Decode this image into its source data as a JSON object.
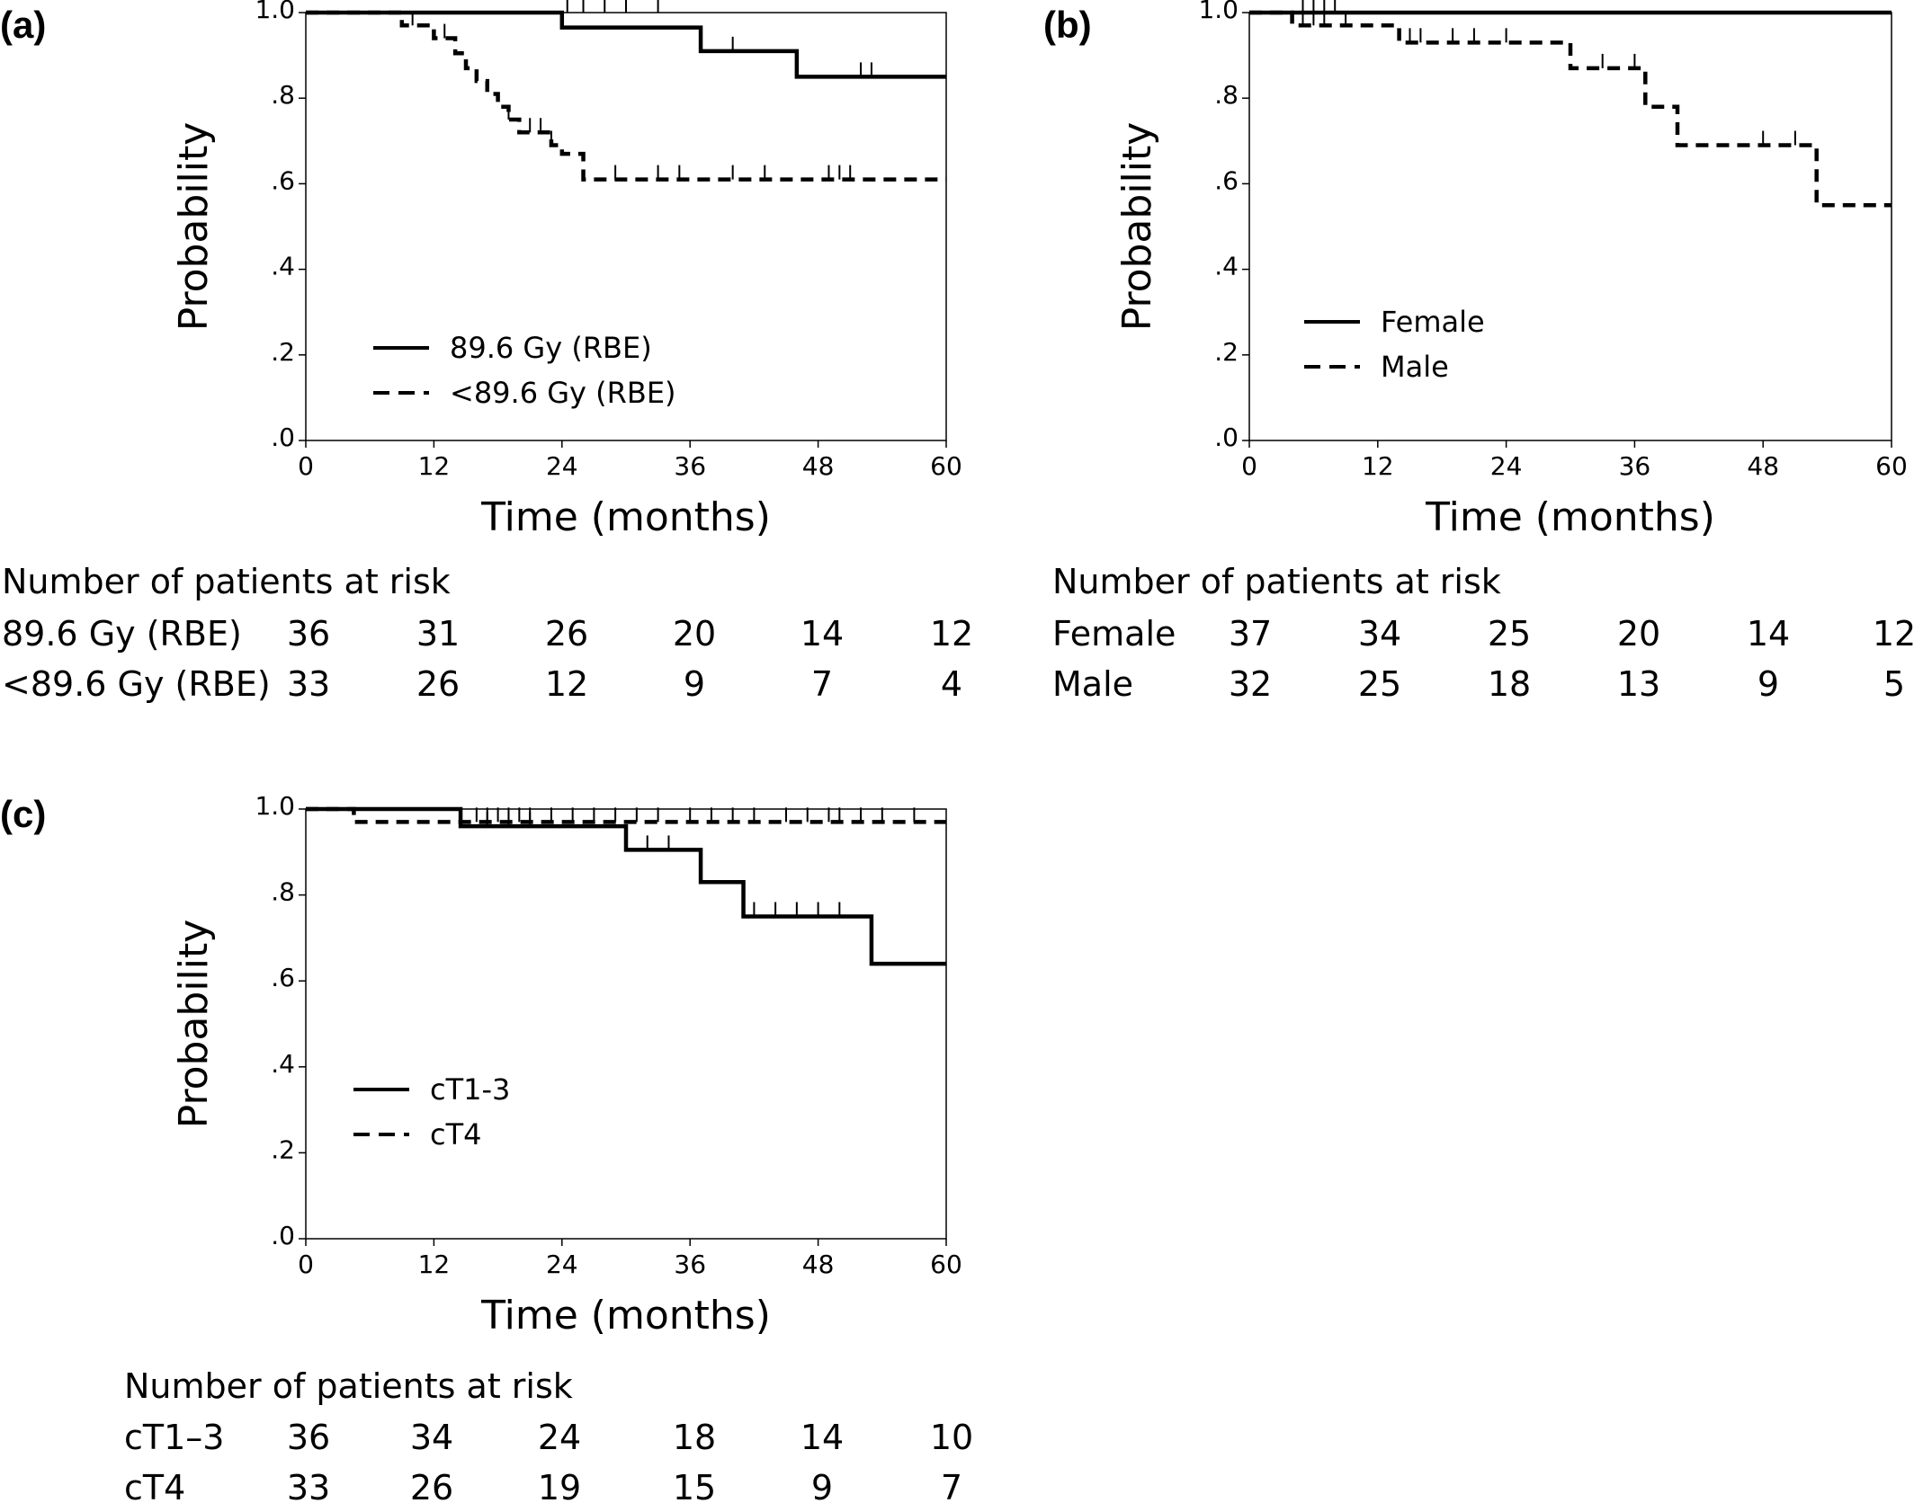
{
  "chart_data": [
    {
      "type": "line",
      "panel_label": "(a)",
      "xlabel": "Time (months)",
      "ylabel": "Probability",
      "xlim": [
        0,
        60
      ],
      "ylim": [
        0,
        1
      ],
      "x_ticks": [
        "0",
        "12",
        "24",
        "36",
        "48",
        "60"
      ],
      "y_ticks": [
        ".0",
        ".2",
        ".4",
        ".6",
        ".8",
        "1.0"
      ],
      "legend_position": "lower-left",
      "series": [
        {
          "name": "89.6 Gy (RBE)",
          "style": "solid",
          "steps": [
            [
              0,
              1.0
            ],
            [
              24,
              0.965
            ],
            [
              37,
              0.91
            ],
            [
              46,
              0.85
            ]
          ],
          "end": 60,
          "censors": [
            [
              24.5,
              1.0
            ],
            [
              26,
              1.0
            ],
            [
              28,
              1.0
            ],
            [
              30,
              1.0
            ],
            [
              33,
              1.0
            ],
            [
              40,
              0.91
            ],
            [
              52,
              0.85
            ],
            [
              53,
              0.85
            ]
          ]
        },
        {
          "name": "<89.6 Gy (RBE)",
          "style": "dashed",
          "steps": [
            [
              0,
              1.0
            ],
            [
              9,
              0.97
            ],
            [
              12,
              0.94
            ],
            [
              14,
              0.905
            ],
            [
              15,
              0.87
            ],
            [
              16,
              0.84
            ],
            [
              17,
              0.81
            ],
            [
              18,
              0.78
            ],
            [
              19,
              0.75
            ],
            [
              20,
              0.72
            ],
            [
              23,
              0.69
            ],
            [
              24,
              0.67
            ],
            [
              26,
              0.61
            ]
          ],
          "end": 60,
          "censors": [
            [
              10,
              0.97
            ],
            [
              13,
              0.94
            ],
            [
              19,
              0.75
            ],
            [
              21,
              0.72
            ],
            [
              22,
              0.72
            ],
            [
              23,
              0.69
            ],
            [
              29,
              0.61
            ],
            [
              33,
              0.61
            ],
            [
              35,
              0.61
            ],
            [
              40,
              0.61
            ],
            [
              43,
              0.61
            ],
            [
              49,
              0.61
            ],
            [
              50,
              0.61
            ],
            [
              51,
              0.61
            ]
          ]
        }
      ],
      "risk_table": {
        "title": "Number of patients at risk",
        "rows": [
          {
            "label": "89.6 Gy (RBE)",
            "values": [
              "36",
              "31",
              "26",
              "20",
              "14",
              "12"
            ]
          },
          {
            "label": "<89.6 Gy (RBE)",
            "values": [
              "33",
              "26",
              "12",
              "9",
              "7",
              "4"
            ]
          }
        ]
      }
    },
    {
      "type": "line",
      "panel_label": "(b)",
      "xlabel": "Time (months)",
      "ylabel": "Probability",
      "xlim": [
        0,
        60
      ],
      "ylim": [
        0,
        1
      ],
      "x_ticks": [
        "0",
        "12",
        "24",
        "36",
        "48",
        "60"
      ],
      "y_ticks": [
        ".0",
        ".2",
        ".4",
        ".6",
        ".8",
        "1.0"
      ],
      "legend_position": "lower-left",
      "series": [
        {
          "name": "Female",
          "style": "solid",
          "steps": [
            [
              0,
              1.0
            ]
          ],
          "end": 60,
          "censors": [
            [
              5,
              1.0
            ],
            [
              6,
              1.0
            ],
            [
              7,
              1.0
            ],
            [
              8,
              1.0
            ]
          ]
        },
        {
          "name": "Male",
          "style": "dashed",
          "steps": [
            [
              0,
              1.0
            ],
            [
              4,
              0.97
            ],
            [
              14,
              0.93
            ],
            [
              30,
              0.87
            ],
            [
              37,
              0.78
            ],
            [
              40,
              0.69
            ],
            [
              53,
              0.55
            ]
          ],
          "end": 60,
          "censors": [
            [
              5,
              0.97
            ],
            [
              6,
              0.97
            ],
            [
              7,
              0.97
            ],
            [
              9,
              0.97
            ],
            [
              15,
              0.93
            ],
            [
              16,
              0.93
            ],
            [
              19,
              0.93
            ],
            [
              21,
              0.93
            ],
            [
              24,
              0.93
            ],
            [
              33,
              0.87
            ],
            [
              36,
              0.87
            ],
            [
              48,
              0.69
            ],
            [
              51,
              0.69
            ]
          ]
        }
      ],
      "risk_table": {
        "title": "Number of patients at risk",
        "rows": [
          {
            "label": "Female",
            "values": [
              "37",
              "34",
              "25",
              "20",
              "14",
              "12"
            ]
          },
          {
            "label": "Male",
            "values": [
              "32",
              "25",
              "18",
              "13",
              "9",
              "5"
            ]
          }
        ]
      }
    },
    {
      "type": "line",
      "panel_label": "(c)",
      "xlabel": "Time (months)",
      "ylabel": "Probability",
      "xlim": [
        0,
        60
      ],
      "ylim": [
        0,
        1
      ],
      "x_ticks": [
        "0",
        "12",
        "24",
        "36",
        "48",
        "60"
      ],
      "y_ticks": [
        ".0",
        ".2",
        ".4",
        ".6",
        ".8",
        "1.0"
      ],
      "legend_position": "lower-left",
      "series": [
        {
          "name": "cT1-3",
          "style": "solid",
          "steps": [
            [
              0,
              1.0
            ],
            [
              14.5,
              0.96
            ],
            [
              30,
              0.905
            ],
            [
              37,
              0.83
            ],
            [
              41,
              0.75
            ],
            [
              53,
              0.64
            ]
          ],
          "end": 60,
          "censors": [
            [
              17,
              0.96
            ],
            [
              19,
              0.96
            ],
            [
              21,
              0.96
            ],
            [
              32,
              0.905
            ],
            [
              34,
              0.905
            ],
            [
              42,
              0.75
            ],
            [
              44,
              0.75
            ],
            [
              46,
              0.75
            ],
            [
              48,
              0.75
            ],
            [
              50,
              0.75
            ]
          ]
        },
        {
          "name": "cT4",
          "style": "dashed",
          "steps": [
            [
              0,
              1.0
            ],
            [
              4.5,
              0.97
            ]
          ],
          "end": 60,
          "censors": [
            [
              16,
              0.97
            ],
            [
              17,
              0.97
            ],
            [
              18,
              0.97
            ],
            [
              19,
              0.97
            ],
            [
              20,
              0.97
            ],
            [
              21,
              0.97
            ],
            [
              23,
              0.97
            ],
            [
              25,
              0.97
            ],
            [
              27,
              0.97
            ],
            [
              29,
              0.97
            ],
            [
              31,
              0.97
            ],
            [
              33,
              0.97
            ],
            [
              36,
              0.97
            ],
            [
              38,
              0.97
            ],
            [
              40,
              0.97
            ],
            [
              42,
              0.97
            ],
            [
              45,
              0.97
            ],
            [
              47,
              0.97
            ],
            [
              49,
              0.97
            ],
            [
              50,
              0.97
            ],
            [
              52,
              0.97
            ],
            [
              54,
              0.97
            ],
            [
              57,
              0.97
            ]
          ]
        }
      ],
      "risk_table": {
        "title": "Number of patients at risk",
        "rows": [
          {
            "label": "cT1–3",
            "values": [
              "36",
              "34",
              "24",
              "18",
              "14",
              "10"
            ]
          },
          {
            "label": "cT4",
            "values": [
              "33",
              "26",
              "19",
              "15",
              "9",
              "7"
            ]
          }
        ]
      }
    }
  ]
}
